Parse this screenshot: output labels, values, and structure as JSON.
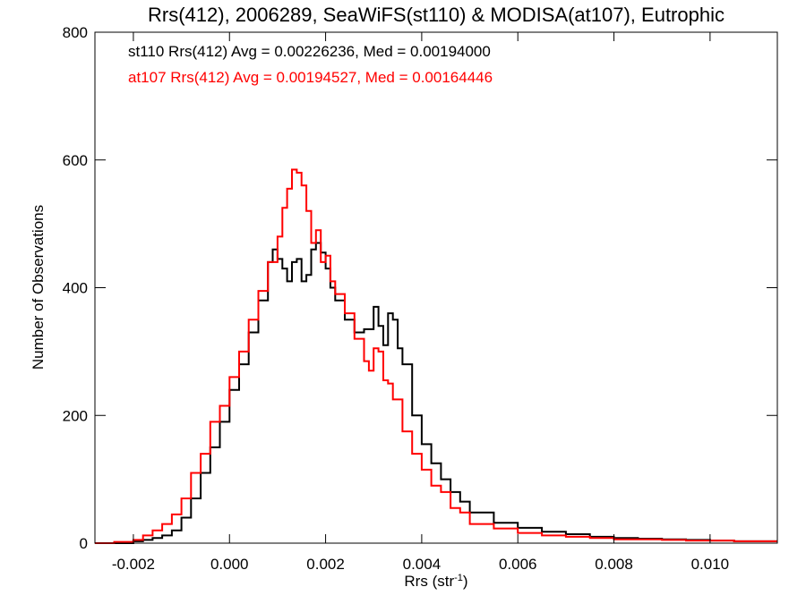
{
  "chart_data": {
    "type": "line",
    "title": "Rrs(412), 2006289, SeaWiFS(st110) & MODISA(at107), Eutrophic",
    "xlabel": "Rrs (str",
    "xlabel_sup": "-1",
    "xlabel_close": ")",
    "ylabel": "Number of Observations",
    "xlim": [
      -0.0028,
      0.0114
    ],
    "ylim": [
      0,
      800
    ],
    "x_ticks": [
      -0.002,
      0.0,
      0.002,
      0.004,
      0.006,
      0.008,
      0.01
    ],
    "x_tick_labels": [
      "-0.002",
      "0.000",
      "0.002",
      "0.004",
      "0.006",
      "0.008",
      "0.010"
    ],
    "y_ticks": [
      0,
      200,
      400,
      600,
      800
    ],
    "y_tick_labels": [
      "0",
      "200",
      "400",
      "600",
      "800"
    ],
    "grid": false,
    "legend_position": "top-left",
    "annotations": [
      "st110 Rrs(412) Avg = 0.00226236, Med = 0.00194000",
      "at107 Rrs(412) Avg = 0.00194527, Med = 0.00164446"
    ],
    "series": [
      {
        "color": "#000000",
        "step": "histogram",
        "x": [
          -0.0028,
          -0.0024,
          -0.002,
          -0.0018,
          -0.0016,
          -0.0014,
          -0.0012,
          -0.001,
          -0.0008,
          -0.0006,
          -0.0004,
          -0.0002,
          0.0,
          0.0002,
          0.0004,
          0.0006,
          0.0008,
          0.0009,
          0.001,
          0.0011,
          0.0012,
          0.0013,
          0.0014,
          0.0015,
          0.0016,
          0.0017,
          0.0018,
          0.0019,
          0.002,
          0.0021,
          0.0022,
          0.0024,
          0.0026,
          0.0028,
          0.003,
          0.0031,
          0.0032,
          0.0033,
          0.0034,
          0.0035,
          0.0036,
          0.0038,
          0.004,
          0.0042,
          0.0044,
          0.0046,
          0.0048,
          0.005,
          0.0055,
          0.006,
          0.0065,
          0.007,
          0.0075,
          0.008,
          0.0085,
          0.009,
          0.0095,
          0.01,
          0.0105,
          0.011,
          0.0114
        ],
        "y": [
          0,
          0,
          3,
          5,
          8,
          12,
          20,
          40,
          70,
          110,
          150,
          190,
          240,
          280,
          330,
          380,
          440,
          460,
          445,
          430,
          410,
          440,
          445,
          410,
          420,
          460,
          470,
          455,
          430,
          400,
          380,
          350,
          330,
          335,
          370,
          340,
          310,
          360,
          350,
          305,
          280,
          200,
          155,
          125,
          100,
          80,
          65,
          48,
          32,
          24,
          18,
          14,
          10,
          8,
          7,
          6,
          5,
          4,
          3,
          3,
          3
        ]
      },
      {
        "color": "#ff0000",
        "step": "histogram",
        "x": [
          -0.0028,
          -0.0024,
          -0.002,
          -0.0018,
          -0.0016,
          -0.0014,
          -0.0012,
          -0.001,
          -0.0008,
          -0.0006,
          -0.0004,
          -0.0002,
          0.0,
          0.0002,
          0.0004,
          0.0006,
          0.0008,
          0.001,
          0.0011,
          0.0012,
          0.0013,
          0.0014,
          0.0015,
          0.0016,
          0.0017,
          0.0018,
          0.0019,
          0.002,
          0.0021,
          0.0022,
          0.0024,
          0.0026,
          0.0028,
          0.0029,
          0.003,
          0.0031,
          0.0032,
          0.0033,
          0.0034,
          0.0036,
          0.0038,
          0.004,
          0.0042,
          0.0044,
          0.0046,
          0.0048,
          0.005,
          0.0055,
          0.006,
          0.0065,
          0.007,
          0.0075,
          0.008,
          0.0085,
          0.009,
          0.0095,
          0.01,
          0.0105,
          0.011,
          0.0114
        ],
        "y": [
          0,
          2,
          5,
          12,
          20,
          30,
          45,
          70,
          110,
          140,
          190,
          215,
          260,
          300,
          350,
          395,
          440,
          480,
          525,
          555,
          585,
          580,
          560,
          520,
          470,
          490,
          440,
          450,
          410,
          390,
          360,
          320,
          285,
          270,
          305,
          300,
          255,
          250,
          225,
          175,
          140,
          115,
          90,
          80,
          55,
          48,
          30,
          23,
          16,
          12,
          10,
          8,
          6,
          6,
          5,
          4,
          4,
          3,
          3,
          3
        ]
      }
    ]
  }
}
